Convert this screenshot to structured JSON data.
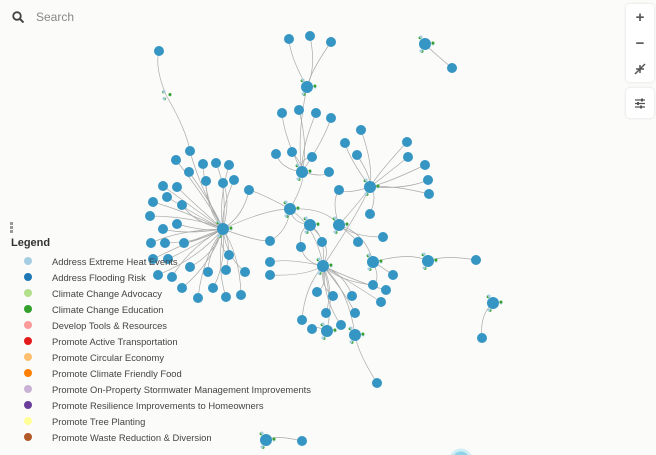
{
  "search": {
    "placeholder": "Search",
    "icon": "search-icon"
  },
  "toolbar": {
    "zoom_in": "+",
    "zoom_out": "−",
    "fit_icon": "collapse-icon",
    "filter_icon": "sliders-icon"
  },
  "legend": {
    "title": "Legend",
    "items": [
      {
        "label": "Address Extreme Heat Events",
        "color": "#a6cee3"
      },
      {
        "label": "Address Flooding Risk",
        "color": "#1f78b4"
      },
      {
        "label": "Climate Change Advocacy",
        "color": "#b2df8a"
      },
      {
        "label": "Climate Change Education",
        "color": "#33a02c"
      },
      {
        "label": "Develop Tools & Resources",
        "color": "#fb9a99"
      },
      {
        "label": "Promote Active Transportation",
        "color": "#e31a1c"
      },
      {
        "label": "Promote Circular Economy",
        "color": "#fdbf6f"
      },
      {
        "label": "Promote Climate Friendly Food",
        "color": "#ff7f00"
      },
      {
        "label": "Promote On-Property Stormwater Management Improvements",
        "color": "#cab2d6"
      },
      {
        "label": "Promote Resilience Improvements to Homeowners",
        "color": "#6a3d9a"
      },
      {
        "label": "Promote Tree Planting",
        "color": "#ffff99"
      },
      {
        "label": "Promote Waste Reduction & Diversion",
        "color": "#b15928"
      }
    ]
  },
  "node_color": "#3596c4"
}
